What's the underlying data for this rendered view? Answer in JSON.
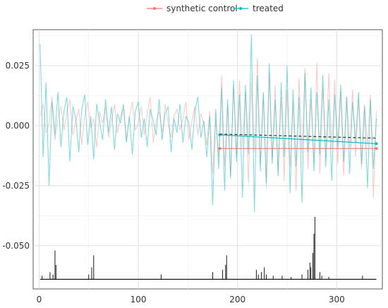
{
  "chart_data": {
    "type": "line",
    "title": "",
    "xlabel": "",
    "ylabel": "",
    "xlim": [
      -6,
      346
    ],
    "ylim": [
      -0.068,
      0.04
    ],
    "x_ticks": [
      0,
      100,
      200,
      300
    ],
    "y_ticks": [
      0.025,
      0.0,
      -0.025,
      -0.05
    ],
    "x_tick_labels": [
      "0",
      "100",
      "200",
      "300"
    ],
    "y_tick_labels": [
      "0.025",
      "0.000",
      "-0.025",
      "-0.050"
    ],
    "grid": true,
    "legend_position": "top",
    "series": [
      {
        "name": "synthetic control",
        "color": "#F8766D",
        "opacity": 0.4,
        "x": [
          1,
          4,
          7,
          10,
          13,
          16,
          19,
          22,
          25,
          28,
          31,
          34,
          37,
          40,
          43,
          46,
          49,
          52,
          55,
          58,
          61,
          64,
          67,
          70,
          73,
          76,
          79,
          82,
          85,
          88,
          91,
          94,
          97,
          100,
          103,
          106,
          109,
          112,
          115,
          118,
          121,
          124,
          127,
          130,
          133,
          136,
          139,
          142,
          145,
          148,
          151,
          154,
          157,
          160,
          163,
          166,
          169,
          172,
          175,
          178,
          181,
          184,
          187,
          190,
          193,
          196,
          199,
          202,
          205,
          208,
          211,
          214,
          217,
          220,
          223,
          226,
          229,
          232,
          235,
          238,
          241,
          244,
          247,
          250,
          253,
          256,
          259,
          262,
          265,
          268,
          271,
          274,
          277,
          280,
          283,
          286,
          289,
          292,
          295,
          298,
          301,
          304,
          307,
          310,
          313,
          316,
          319,
          322,
          325,
          328,
          331,
          334,
          337,
          340
        ],
        "y": [
          0.004,
          0.009,
          -0.003,
          0.001,
          0.012,
          -0.006,
          0.003,
          0.008,
          -0.002,
          0.005,
          0.011,
          -0.004,
          0.002,
          0.007,
          -0.008,
          0.004,
          0.01,
          -0.001,
          0.003,
          -0.009,
          0.006,
          0.001,
          0.008,
          -0.005,
          0.002,
          0.009,
          -0.003,
          0.004,
          0.007,
          -0.006,
          0.003,
          0.01,
          -0.002,
          0.001,
          0.008,
          -0.004,
          0.005,
          0.012,
          -0.007,
          0.002,
          0.006,
          -0.003,
          0.009,
          0.001,
          -0.005,
          0.004,
          0.007,
          -0.002,
          0.003,
          0.01,
          -0.006,
          0.002,
          0.008,
          -0.004,
          0.005,
          0.001,
          -0.008,
          0.006,
          -0.02,
          0.003,
          -0.013,
          0.021,
          -0.017,
          0.009,
          -0.021,
          0.016,
          -0.012,
          0.019,
          -0.009,
          0.014,
          -0.024,
          0.018,
          -0.011,
          0.028,
          -0.016,
          0.013,
          -0.026,
          0.022,
          -0.014,
          0.017,
          -0.019,
          0.012,
          -0.023,
          0.015,
          -0.017,
          0.01,
          -0.027,
          0.02,
          -0.012,
          0.024,
          -0.018,
          0.011,
          -0.015,
          0.026,
          -0.02,
          0.016,
          -0.013,
          0.022,
          -0.01,
          0.019,
          -0.016,
          0.014,
          -0.021,
          0.012,
          -0.009,
          0.015,
          -0.013,
          0.011,
          -0.018,
          0.009,
          -0.008,
          0.013,
          -0.03,
          0.006
        ]
      },
      {
        "name": "treated",
        "color": "#00BFC4",
        "opacity": 0.55,
        "x": [
          1,
          4,
          7,
          10,
          13,
          16,
          19,
          22,
          25,
          28,
          31,
          34,
          37,
          40,
          43,
          46,
          49,
          52,
          55,
          58,
          61,
          64,
          67,
          70,
          73,
          76,
          79,
          82,
          85,
          88,
          91,
          94,
          97,
          100,
          103,
          106,
          109,
          112,
          115,
          118,
          121,
          124,
          127,
          130,
          133,
          136,
          139,
          142,
          145,
          148,
          151,
          154,
          157,
          160,
          163,
          166,
          169,
          172,
          175,
          178,
          181,
          184,
          187,
          190,
          193,
          196,
          199,
          202,
          205,
          208,
          211,
          214,
          217,
          220,
          223,
          226,
          229,
          232,
          235,
          238,
          241,
          244,
          247,
          250,
          253,
          256,
          259,
          262,
          265,
          268,
          271,
          274,
          277,
          280,
          283,
          286,
          289,
          292,
          295,
          298,
          301,
          304,
          307,
          310,
          313,
          316,
          319,
          322,
          325,
          328,
          331,
          334,
          337,
          340
        ],
        "y": [
          0.034,
          -0.013,
          0.018,
          -0.025,
          0.01,
          -0.004,
          0.014,
          -0.009,
          0.006,
          0.012,
          -0.015,
          0.008,
          0.003,
          -0.011,
          0.007,
          0.013,
          -0.008,
          0.004,
          -0.014,
          0.009,
          0.002,
          -0.006,
          0.011,
          -0.003,
          0.008,
          -0.01,
          0.005,
          0.001,
          0.009,
          -0.007,
          0.004,
          -0.012,
          0.006,
          0.01,
          -0.005,
          0.003,
          -0.009,
          0.007,
          0.002,
          -0.004,
          0.011,
          -0.006,
          0.005,
          0.008,
          -0.011,
          0.003,
          -0.003,
          0.009,
          -0.007,
          0.004,
          0.001,
          -0.01,
          0.006,
          0.012,
          -0.005,
          0.002,
          -0.013,
          0.004,
          -0.033,
          0.007,
          -0.018,
          0.016,
          -0.027,
          0.011,
          -0.022,
          0.019,
          -0.015,
          0.013,
          -0.03,
          0.017,
          -0.012,
          0.038,
          -0.036,
          0.021,
          -0.019,
          0.014,
          -0.024,
          0.026,
          -0.016,
          0.011,
          -0.021,
          0.018,
          -0.013,
          0.025,
          -0.028,
          0.015,
          -0.017,
          0.012,
          -0.032,
          0.022,
          -0.011,
          0.016,
          -0.019,
          0.014,
          -0.012,
          0.021,
          -0.017,
          0.011,
          -0.023,
          0.013,
          -0.009,
          0.017,
          -0.015,
          0.012,
          -0.02,
          0.01,
          -0.007,
          0.014,
          -0.016,
          0.008,
          -0.026,
          0.011,
          -0.018,
          0.003
        ]
      }
    ],
    "trend_lines": [
      {
        "series": "synthetic control",
        "color": "#F8766D",
        "dashed": false,
        "x": [
          182,
          340
        ],
        "y": [
          -0.0095,
          -0.0095
        ]
      },
      {
        "series": "treated",
        "color": "#00BFC4",
        "dashed": false,
        "x": [
          182,
          340
        ],
        "y": [
          -0.0038,
          -0.0075
        ]
      },
      {
        "series": "",
        "color": "#333333",
        "dashed": true,
        "x": [
          182,
          340
        ],
        "y": [
          -0.0035,
          -0.0052
        ]
      }
    ],
    "spikes": {
      "color": "#1a1a1a",
      "baseline": -0.064,
      "x": [
        3,
        11,
        14,
        16,
        17,
        50,
        53,
        55,
        123,
        175,
        185,
        188,
        189,
        219,
        221,
        224,
        227,
        229,
        236,
        245,
        254,
        265,
        271,
        273,
        274,
        276,
        277,
        278,
        283,
        285,
        292,
        326
      ],
      "y": [
        -0.0625,
        -0.061,
        -0.062,
        -0.052,
        -0.058,
        -0.062,
        -0.059,
        -0.054,
        -0.062,
        -0.061,
        -0.06,
        -0.058,
        -0.054,
        -0.06,
        -0.062,
        -0.061,
        -0.059,
        -0.062,
        -0.0625,
        -0.0625,
        -0.063,
        -0.062,
        -0.06,
        -0.057,
        -0.059,
        -0.053,
        -0.045,
        -0.038,
        -0.061,
        -0.0625,
        -0.063,
        -0.0625
      ]
    }
  }
}
